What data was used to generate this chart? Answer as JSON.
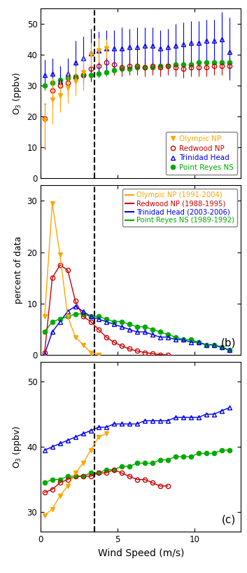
{
  "panel_a": {
    "olympic_x": [
      0.25,
      0.75,
      1.25,
      1.75,
      2.25,
      2.75,
      3.25,
      3.75,
      4.25
    ],
    "olympic_y": [
      19.0,
      25.5,
      27.0,
      29.5,
      31.5,
      34.5,
      40.0,
      41.5,
      42.0
    ],
    "olympic_yerr_lo": [
      9.0,
      8.0,
      5.5,
      5.0,
      4.5,
      6.0,
      4.0,
      4.0,
      3.0
    ],
    "olympic_yerr_hi": [
      5.0,
      7.0,
      5.0,
      5.0,
      5.0,
      5.0,
      4.0,
      4.0,
      3.0
    ],
    "redwood_x": [
      0.25,
      0.75,
      1.25,
      1.75,
      2.25,
      2.75,
      3.25,
      3.75,
      4.25,
      4.75,
      5.25,
      5.75,
      6.25,
      6.75,
      7.25,
      7.75,
      8.25,
      8.75,
      9.25,
      9.75,
      10.25,
      10.75,
      11.25,
      11.75,
      12.25
    ],
    "redwood_y": [
      19.5,
      28.5,
      30.0,
      31.0,
      32.5,
      33.5,
      35.5,
      36.5,
      37.5,
      37.0,
      36.0,
      36.5,
      36.5,
      36.0,
      36.5,
      36.0,
      36.5,
      36.0,
      35.5,
      36.0,
      36.0,
      36.0,
      36.5,
      36.5,
      36.5
    ],
    "redwood_yerr_lo": [
      10.0,
      5.0,
      4.0,
      4.0,
      4.0,
      3.5,
      4.0,
      3.5,
      3.5,
      3.5,
      3.0,
      3.0,
      3.0,
      3.0,
      3.0,
      3.0,
      3.0,
      3.0,
      3.0,
      3.0,
      3.0,
      3.0,
      3.0,
      3.0,
      3.0
    ],
    "redwood_yerr_hi": [
      5.0,
      5.0,
      4.0,
      4.0,
      4.0,
      3.5,
      4.0,
      3.5,
      3.5,
      3.5,
      3.0,
      3.0,
      3.0,
      3.0,
      3.0,
      3.0,
      3.0,
      3.0,
      3.0,
      3.0,
      3.0,
      3.0,
      3.0,
      3.0,
      3.0
    ],
    "trinidad_x": [
      0.25,
      0.75,
      1.25,
      1.75,
      2.25,
      2.75,
      3.25,
      3.75,
      4.25,
      4.75,
      5.25,
      5.75,
      6.25,
      6.75,
      7.25,
      7.75,
      8.25,
      8.75,
      9.25,
      9.75,
      10.25,
      10.75,
      11.25,
      11.75,
      12.25
    ],
    "trinidad_y": [
      33.5,
      34.0,
      31.5,
      34.0,
      37.5,
      39.0,
      40.5,
      41.5,
      42.0,
      42.0,
      42.0,
      42.5,
      42.5,
      43.0,
      43.0,
      42.0,
      42.5,
      43.0,
      43.5,
      44.0,
      44.0,
      44.5,
      44.5,
      45.0,
      41.0
    ],
    "trinidad_yerr_lo": [
      4.0,
      6.0,
      8.0,
      7.0,
      6.0,
      8.0,
      9.0,
      7.0,
      7.0,
      6.0,
      7.0,
      6.0,
      6.5,
      7.0,
      7.0,
      6.5,
      6.0,
      7.0,
      7.0,
      7.0,
      7.0,
      7.0,
      7.0,
      7.0,
      9.0
    ],
    "trinidad_yerr_hi": [
      5.0,
      5.0,
      5.0,
      5.0,
      7.0,
      7.0,
      8.0,
      6.0,
      6.0,
      6.0,
      7.0,
      6.0,
      6.5,
      6.0,
      6.0,
      6.0,
      6.0,
      7.0,
      7.0,
      7.0,
      7.0,
      7.0,
      7.0,
      9.0,
      11.0
    ],
    "reyes_x": [
      0.25,
      0.75,
      1.25,
      1.75,
      2.25,
      2.75,
      3.25,
      3.75,
      4.25,
      4.75,
      5.25,
      5.75,
      6.25,
      6.75,
      7.25,
      7.75,
      8.25,
      8.75,
      9.25,
      9.75,
      10.25,
      10.75,
      11.25,
      11.75,
      12.25
    ],
    "reyes_y": [
      30.0,
      31.0,
      32.0,
      32.5,
      33.0,
      33.5,
      33.5,
      34.0,
      34.5,
      35.0,
      35.5,
      35.5,
      36.0,
      36.0,
      36.0,
      36.5,
      36.5,
      37.0,
      37.0,
      37.0,
      37.5,
      37.5,
      37.5,
      37.5,
      37.5
    ],
    "reyes_yerr_lo": [
      1.5,
      1.5,
      1.5,
      1.5,
      1.5,
      1.5,
      1.5,
      1.5,
      1.5,
      1.5,
      1.5,
      1.5,
      1.5,
      1.5,
      1.5,
      1.5,
      1.5,
      1.5,
      1.5,
      1.5,
      1.5,
      1.5,
      1.5,
      1.5,
      1.5
    ],
    "reyes_yerr_hi": [
      1.5,
      1.5,
      1.5,
      1.5,
      1.5,
      1.5,
      1.5,
      1.5,
      1.5,
      1.5,
      1.5,
      1.5,
      1.5,
      1.5,
      1.5,
      1.5,
      1.5,
      1.5,
      1.5,
      1.5,
      1.5,
      1.5,
      1.5,
      1.5,
      1.5
    ],
    "ylim": [
      0,
      55
    ],
    "yticks": [
      0,
      10,
      20,
      30,
      40,
      50
    ],
    "ylabel": "O$_3$ (ppbv)"
  },
  "panel_b": {
    "olympic_x": [
      0.25,
      0.75,
      1.25,
      1.75,
      2.25,
      2.75,
      3.25,
      3.75
    ],
    "olympic_y": [
      7.5,
      29.5,
      19.5,
      7.5,
      3.5,
      2.0,
      0.5,
      0.1
    ],
    "redwood_x": [
      0.25,
      0.75,
      1.25,
      1.75,
      2.25,
      2.75,
      3.25,
      3.75,
      4.25,
      4.75,
      5.25,
      5.75,
      6.25,
      6.75,
      7.25,
      7.75,
      8.25
    ],
    "redwood_y": [
      0.5,
      15.0,
      17.5,
      16.5,
      10.5,
      7.5,
      6.5,
      5.0,
      3.5,
      2.5,
      1.8,
      1.2,
      0.8,
      0.5,
      0.3,
      0.1,
      0.0
    ],
    "trinidad_x": [
      0.25,
      0.75,
      1.25,
      1.75,
      2.25,
      2.75,
      3.25,
      3.75,
      4.25,
      4.75,
      5.25,
      5.75,
      6.25,
      6.75,
      7.25,
      7.75,
      8.25,
      8.75,
      9.25,
      9.75,
      10.25,
      10.75,
      11.25,
      11.75,
      12.25
    ],
    "trinidad_y": [
      0.2,
      4.5,
      6.5,
      8.5,
      9.5,
      8.5,
      7.5,
      7.0,
      6.5,
      6.0,
      5.5,
      5.0,
      4.5,
      4.5,
      4.0,
      3.5,
      3.5,
      3.0,
      3.0,
      2.5,
      2.5,
      2.0,
      2.0,
      1.5,
      1.0
    ],
    "reyes_x": [
      0.25,
      0.75,
      1.25,
      1.75,
      2.25,
      2.75,
      3.25,
      3.75,
      4.25,
      4.75,
      5.25,
      5.75,
      6.25,
      6.75,
      7.25,
      7.75,
      8.25,
      8.75,
      9.25,
      9.75,
      10.25,
      10.75,
      11.25,
      11.75,
      12.25
    ],
    "reyes_y": [
      4.5,
      6.5,
      7.0,
      7.5,
      8.0,
      8.0,
      7.5,
      7.5,
      7.0,
      6.5,
      6.5,
      6.0,
      5.5,
      5.5,
      5.0,
      4.5,
      4.0,
      3.5,
      3.0,
      3.0,
      2.5,
      2.0,
      2.0,
      1.5,
      1.0
    ],
    "ylim": [
      0,
      33
    ],
    "yticks": [
      0,
      10,
      20,
      30
    ],
    "ylabel": "percent of data"
  },
  "panel_c": {
    "olympic_x": [
      0.25,
      0.75,
      1.25,
      1.75,
      2.25,
      2.75,
      3.25,
      3.75,
      4.25
    ],
    "olympic_y": [
      29.5,
      30.5,
      32.5,
      34.0,
      36.0,
      37.5,
      39.5,
      41.5,
      42.0
    ],
    "redwood_x": [
      0.25,
      0.75,
      1.25,
      1.75,
      2.25,
      2.75,
      3.25,
      3.75,
      4.25,
      4.75,
      5.25,
      5.75,
      6.25,
      6.75,
      7.25,
      7.75,
      8.25
    ],
    "redwood_y": [
      33.0,
      33.5,
      34.5,
      35.0,
      35.5,
      35.5,
      35.5,
      36.0,
      36.0,
      36.5,
      36.0,
      35.5,
      35.0,
      35.0,
      34.5,
      34.0,
      34.0
    ],
    "trinidad_x": [
      0.25,
      0.75,
      1.25,
      1.75,
      2.25,
      2.75,
      3.25,
      3.75,
      4.25,
      4.75,
      5.25,
      5.75,
      6.25,
      6.75,
      7.25,
      7.75,
      8.25,
      8.75,
      9.25,
      9.75,
      10.25,
      10.75,
      11.25,
      11.75,
      12.25
    ],
    "trinidad_y": [
      39.5,
      40.0,
      40.5,
      41.0,
      41.5,
      42.0,
      42.5,
      43.0,
      43.0,
      43.5,
      43.5,
      43.5,
      43.5,
      44.0,
      44.0,
      44.0,
      44.0,
      44.5,
      44.5,
      44.5,
      44.5,
      45.0,
      45.0,
      45.5,
      46.0
    ],
    "reyes_x": [
      0.25,
      0.75,
      1.25,
      1.75,
      2.25,
      2.75,
      3.25,
      3.75,
      4.25,
      4.75,
      5.25,
      5.75,
      6.25,
      6.75,
      7.25,
      7.75,
      8.25,
      8.75,
      9.25,
      9.75,
      10.25,
      10.75,
      11.25,
      11.75,
      12.25
    ],
    "reyes_y": [
      34.5,
      35.0,
      35.0,
      35.5,
      35.5,
      35.5,
      36.0,
      36.0,
      36.5,
      36.5,
      37.0,
      37.0,
      37.5,
      37.5,
      37.5,
      38.0,
      38.0,
      38.5,
      38.5,
      38.5,
      39.0,
      39.0,
      39.0,
      39.5,
      39.5
    ],
    "ylim": [
      27,
      53
    ],
    "yticks": [
      30,
      40,
      50
    ],
    "ylabel": "O$_3$ (ppbv)"
  },
  "colors": {
    "olympic": "#FFA500",
    "redwood": "#CC0000",
    "trinidad": "#0000EE",
    "reyes": "#00AA00"
  },
  "dashed_x": 3.5,
  "xlim": [
    0,
    13
  ],
  "xticks": [
    0,
    5,
    10
  ],
  "xlabel": "Wind Speed (m/s)",
  "legend_a": {
    "olympic": "Olympic NP",
    "redwood": "Redwood NP",
    "trinidad": "Trinidad Head",
    "reyes": "Point Reyes NS"
  },
  "legend_b": {
    "olympic": "Olympic NP (1991-2004)",
    "redwood": "Redwood NP (1988-1995)",
    "trinidad": "Trinidad Head (2003-2006)",
    "reyes": "Point Reyes NS (1989-1992)"
  }
}
